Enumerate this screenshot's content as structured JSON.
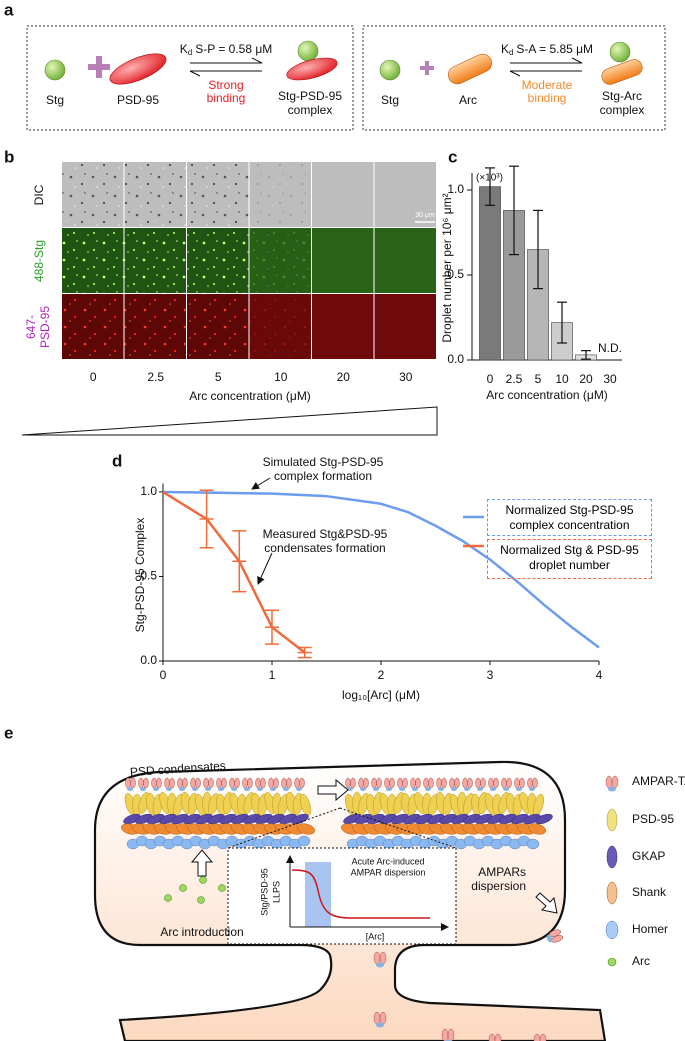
{
  "panel_labels": [
    "a",
    "b",
    "c",
    "d",
    "e"
  ],
  "panel_a": {
    "left": {
      "stg": "Stg",
      "partner": "PSD-95",
      "kd_symbol": "K",
      "kd_subscript": "d",
      "kd_rest": "S-P = 0.58 μM",
      "binding": [
        "Strong",
        "binding"
      ],
      "complex": [
        "Stg-PSD-95",
        "complex"
      ]
    },
    "right": {
      "stg": "Stg",
      "partner": "Arc",
      "kd_symbol": "K",
      "kd_subscript": "d",
      "kd_rest": "S-A = 5.85 μM",
      "binding": [
        "Moderate",
        "binding"
      ],
      "complex": [
        "Stg-Arc",
        "complex"
      ]
    }
  },
  "panel_b": {
    "row_labels": [
      "DIC",
      "488-Stg",
      [
        "647-",
        "PSD-95"
      ]
    ],
    "columns": [
      "0",
      "2.5",
      "5",
      "10",
      "20",
      "30"
    ],
    "xlabel": "Arc concentration (μM)",
    "scale_bar": "30 μm"
  },
  "chart_data": [
    {
      "type": "bar",
      "categories": [
        "0",
        "2.5",
        "5",
        "10",
        "20",
        "30"
      ],
      "values": [
        1.02,
        0.88,
        0.65,
        0.22,
        0.03,
        null
      ],
      "errors": [
        0.11,
        0.26,
        0.23,
        0.12,
        0.025,
        null
      ],
      "colors": [
        "#7a7a7a",
        "#9a9a9a",
        "#b6b6b6",
        "#cdcdcd",
        "#e0e0e0",
        "#eeeeee"
      ],
      "ylim": [
        0,
        1.1
      ],
      "yticks": [
        {
          "value": 0,
          "label": "0.0"
        },
        {
          "value": 0.5,
          "label": "0.5"
        },
        {
          "value": 1,
          "label": "1.0"
        }
      ],
      "ylabel": "Droplet number per 10⁶ μm²",
      "multiplier": "(×10³)",
      "xlabel": "Arc concentration (μM)",
      "annotation": "N.D."
    },
    {
      "type": "line",
      "xlim": [
        0,
        4
      ],
      "xticks": [
        0,
        1,
        2,
        3,
        4
      ],
      "ylim": [
        0,
        1.05
      ],
      "yticks": [
        {
          "value": 0,
          "label": "0.0"
        },
        {
          "value": 0.5,
          "label": "0.5"
        },
        {
          "value": 1,
          "label": "1.0"
        }
      ],
      "xlabel": "log₁₀[Arc] (μM)",
      "ylabel": "Stg-PSD-95 Complex",
      "series": [
        {
          "name": "Normalized Stg-PSD-95 complex concentration",
          "color": "#6b9cf0",
          "x": [
            0,
            0.5,
            1,
            1.5,
            2,
            2.25,
            2.5,
            2.75,
            3,
            3.25,
            3.5,
            3.75,
            4
          ],
          "values": [
            1.0,
            0.995,
            0.99,
            0.975,
            0.93,
            0.88,
            0.8,
            0.71,
            0.6,
            0.47,
            0.33,
            0.2,
            0.08
          ]
        },
        {
          "name": "Normalized Stg & PSD-95 droplet number",
          "color": "#f06a3a",
          "x": [
            0,
            0.4,
            0.7,
            1.0,
            1.3
          ],
          "values": [
            1.0,
            0.84,
            0.59,
            0.2,
            0.05
          ],
          "errors": [
            null,
            0.17,
            0.18,
            0.1,
            0.03
          ]
        }
      ],
      "annotations": [
        "Simulated Stg-PSD-95 complex formation",
        "Measured Stg&PSD-95 condensates formation"
      ]
    }
  ],
  "panel_e": {
    "condensate_label": "PSD condensates",
    "arc_label": "Arc introduction",
    "dispersion_label": [
      "AMPARs",
      "dispersion"
    ],
    "inset": {
      "title": [
        "Acute Arc-induced",
        "AMPAR dispersion"
      ],
      "ylabel": [
        "Stg/PSD-95",
        "LLPS"
      ],
      "xlabel": "[Arc]"
    },
    "legend": [
      "AMPAR-TARP",
      "PSD-95",
      "GKAP",
      "Shank",
      "Homer",
      "Arc"
    ]
  }
}
